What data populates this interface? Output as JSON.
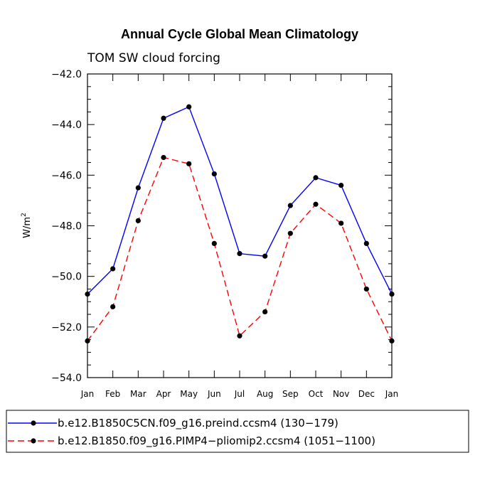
{
  "chart_data": {
    "type": "line",
    "title": "Annual Cycle Global Mean Climatology",
    "subtitle": "TOM SW cloud forcing",
    "ylabel": "W/m",
    "ylabel_sup": "2",
    "xlabel": "",
    "ylim": [
      -54,
      -42
    ],
    "yticks": [
      -42,
      -44,
      -46,
      -48,
      -50,
      -52,
      -54
    ],
    "ytick_labels": [
      "−42.0",
      "−44.0",
      "−46.0",
      "−48.0",
      "−50.0",
      "−52.0",
      "−54.0"
    ],
    "categories": [
      "Jan",
      "Feb",
      "Mar",
      "Apr",
      "May",
      "Jun",
      "Jul",
      "Aug",
      "Sep",
      "Oct",
      "Nov",
      "Dec",
      "Jan"
    ],
    "series": [
      {
        "name": "b.e12.B1850C5CN.f09_g16.preind.ccsm4 (130−179)",
        "color": "#0000ff",
        "dash": "solid",
        "values": [
          -50.7,
          -49.7,
          -46.5,
          -43.75,
          -43.3,
          -45.95,
          -49.1,
          -49.2,
          -47.2,
          -46.1,
          -46.4,
          -48.7,
          -50.7
        ]
      },
      {
        "name": "b.e12.B1850.f09_g16.PIMP4−pliomip2.ccsm4 (1051−1100)",
        "color": "#ff0000",
        "dash": "dashed",
        "values": [
          -52.55,
          -51.2,
          -47.8,
          -45.3,
          -45.55,
          -48.7,
          -52.35,
          -51.4,
          -48.3,
          -47.15,
          -47.9,
          -50.5,
          -52.55
        ]
      }
    ],
    "legend_position": "bottom"
  }
}
